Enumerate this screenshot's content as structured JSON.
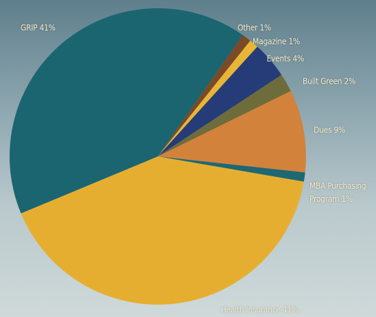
{
  "chart_data": {
    "type": "pie",
    "categories": [
      "Other",
      "Magazine",
      "Events",
      "Built Green",
      "Dues",
      "MBA Purchasing Program",
      "Health Insurance",
      "GRIP"
    ],
    "values": [
      1,
      1,
      4,
      2,
      9,
      1,
      41,
      41
    ],
    "value_labels": [
      "1%",
      "1%",
      "4%",
      "2%",
      "9%",
      "1%",
      "41%",
      "41%"
    ],
    "colors": [
      "#7b4a28",
      "#e8b535",
      "#263c78",
      "#6e6c3a",
      "#d2823a",
      "#1d6872",
      "#e6ae30",
      "#1b6571"
    ]
  }
}
